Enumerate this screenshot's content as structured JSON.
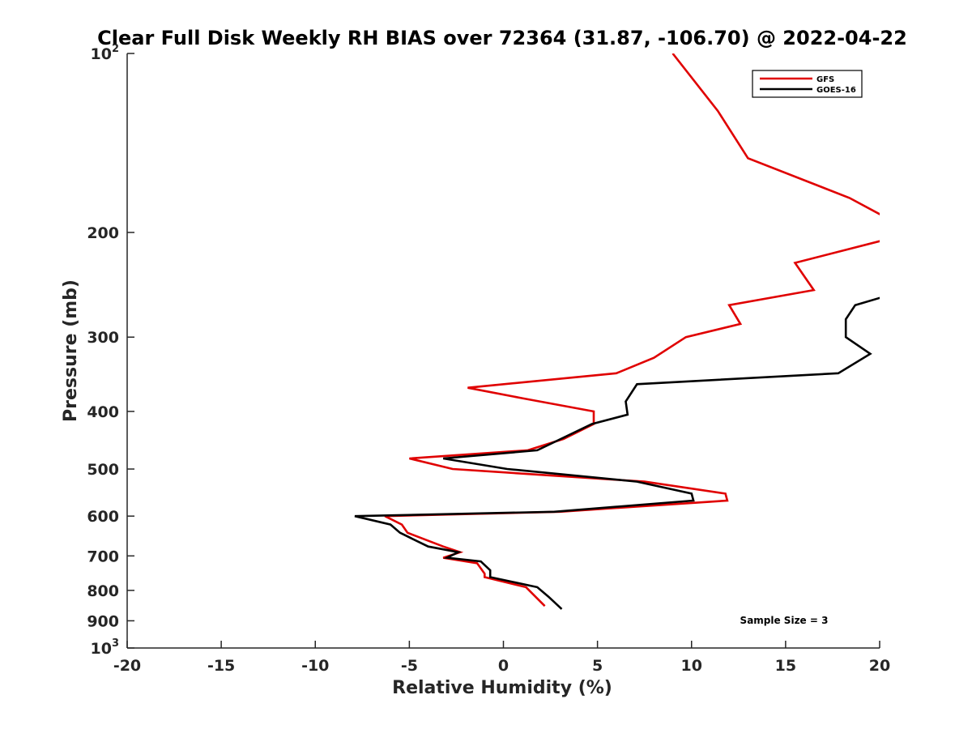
{
  "chart_data": {
    "type": "line",
    "title": "Clear Full Disk Weekly RH BIAS over 72364 (31.87, -106.70) @ 2022-04-22",
    "xlabel": "Relative Humidity (%)",
    "ylabel": "Pressure (mb)",
    "xlim": [
      -20,
      20
    ],
    "ylim": [
      100,
      1000
    ],
    "y_scale": "log",
    "y_reversed": true,
    "x_ticks": [
      "-20",
      "-15",
      "-10",
      "-5",
      "0",
      "5",
      "10",
      "15",
      "20"
    ],
    "x_tick_values": [
      -20,
      -15,
      -10,
      -5,
      0,
      5,
      10,
      15,
      20
    ],
    "y_ticks": [
      {
        "value": 100,
        "base": "10",
        "exp": "2"
      },
      {
        "value": 200,
        "label": "200"
      },
      {
        "value": 300,
        "label": "300"
      },
      {
        "value": 400,
        "label": "400"
      },
      {
        "value": 500,
        "label": "500"
      },
      {
        "value": 600,
        "label": "600"
      },
      {
        "value": 700,
        "label": "700"
      },
      {
        "value": 800,
        "label": "800"
      },
      {
        "value": 900,
        "label": "900"
      },
      {
        "value": 1000,
        "base": "10",
        "exp": "3"
      }
    ],
    "grid": false,
    "legend_position": "top-right",
    "series": [
      {
        "name": "GFS",
        "color": "#e00000",
        "points": [
          [
            9.0,
            100
          ],
          [
            11.4,
            125
          ],
          [
            13.0,
            150
          ],
          [
            18.4,
            175
          ],
          [
            20.5,
            190
          ],
          [
            null,
            null
          ],
          [
            20.5,
            205
          ],
          [
            15.5,
            225
          ],
          [
            16.5,
            250
          ],
          [
            12.0,
            265
          ],
          [
            12.6,
            285
          ],
          [
            9.7,
            300
          ],
          [
            8.0,
            325
          ],
          [
            6.0,
            345
          ],
          [
            -1.9,
            365
          ],
          [
            1.0,
            380
          ],
          [
            4.8,
            400
          ],
          [
            4.8,
            420
          ],
          [
            3.2,
            445
          ],
          [
            1.3,
            465
          ],
          [
            -5.0,
            480
          ],
          [
            -2.7,
            500
          ],
          [
            7.5,
            525
          ],
          [
            11.8,
            550
          ],
          [
            11.9,
            565
          ],
          [
            3.0,
            590
          ],
          [
            -6.3,
            600
          ],
          [
            -5.4,
            620
          ],
          [
            -5.1,
            640
          ],
          [
            -3.2,
            675
          ],
          [
            -2.3,
            690
          ],
          [
            -3.2,
            705
          ],
          [
            -1.4,
            720
          ],
          [
            -1.0,
            750
          ],
          [
            -1.0,
            760
          ],
          [
            1.2,
            790
          ],
          [
            2.2,
            850
          ]
        ]
      },
      {
        "name": "GOES-16",
        "color": "#000000",
        "points": [
          [
            20.5,
            255
          ],
          [
            18.7,
            265
          ],
          [
            18.2,
            280
          ],
          [
            18.2,
            300
          ],
          [
            19.5,
            320
          ],
          [
            17.8,
            345
          ],
          [
            7.1,
            360
          ],
          [
            6.5,
            385
          ],
          [
            6.6,
            405
          ],
          [
            4.7,
            420
          ],
          [
            1.8,
            465
          ],
          [
            -3.2,
            480
          ],
          [
            0.2,
            500
          ],
          [
            7.1,
            525
          ],
          [
            10.0,
            550
          ],
          [
            10.1,
            565
          ],
          [
            2.7,
            590
          ],
          [
            -7.9,
            600
          ],
          [
            -6.0,
            620
          ],
          [
            -5.5,
            640
          ],
          [
            -4.0,
            675
          ],
          [
            -2.4,
            690
          ],
          [
            -3.0,
            705
          ],
          [
            -1.2,
            715
          ],
          [
            -0.7,
            740
          ],
          [
            -0.7,
            760
          ],
          [
            1.8,
            790
          ],
          [
            2.4,
            820
          ],
          [
            3.1,
            860
          ]
        ]
      }
    ],
    "annotations": [
      "Sample Size = 3"
    ]
  }
}
